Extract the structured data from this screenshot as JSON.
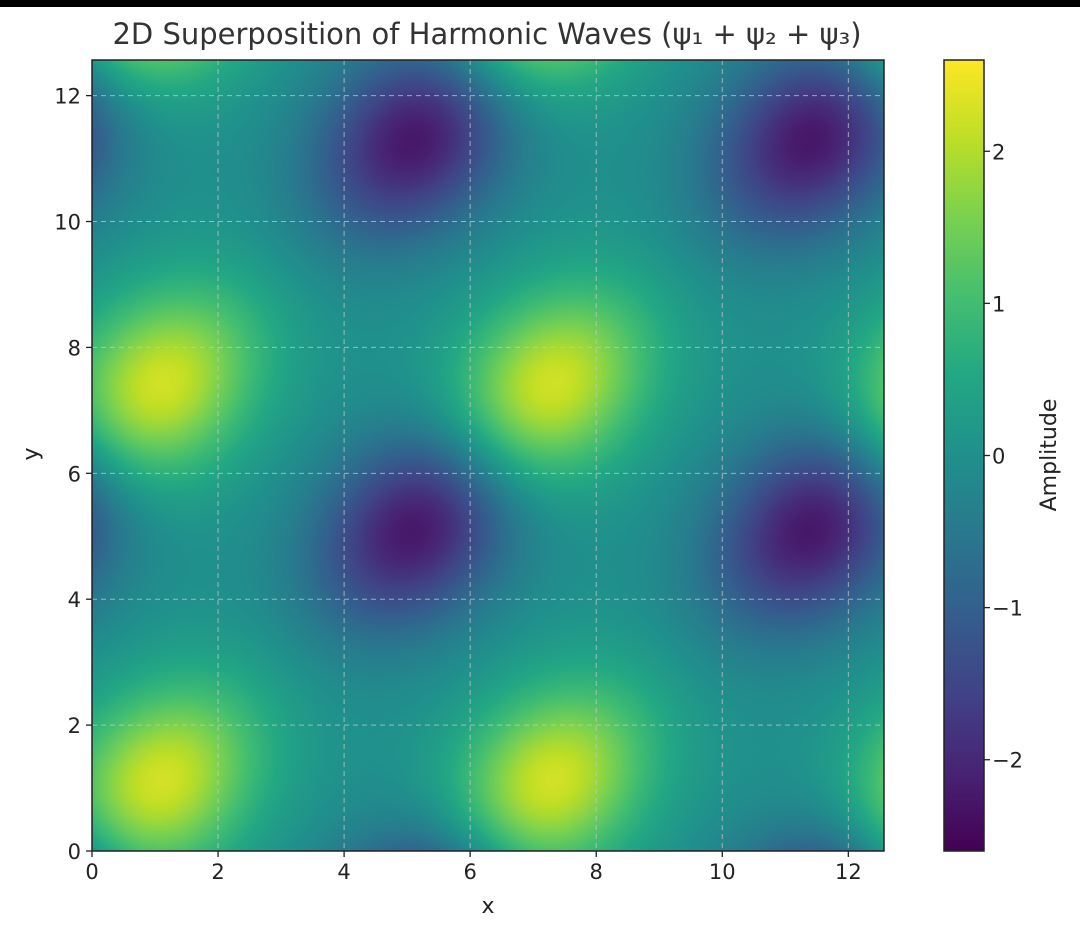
{
  "chart_data": {
    "type": "heatmap",
    "title": "2D Superposition of Harmonic Waves (ψ₁ + ψ₂ + ψ₃)",
    "xlabel": "x",
    "ylabel": "y",
    "xlim": [
      0,
      12.566
    ],
    "ylim": [
      0,
      12.566
    ],
    "x_ticks": [
      "0",
      "2",
      "4",
      "6",
      "8",
      "10",
      "12"
    ],
    "y_ticks": [
      "0",
      "2",
      "4",
      "6",
      "8",
      "10",
      "12"
    ],
    "grid": true,
    "colormap": "viridis",
    "colorbar": {
      "label": "Amplitude",
      "range": [
        -2.6,
        2.6
      ],
      "ticks": [
        "−2",
        "−1",
        "0",
        "1",
        "2"
      ]
    },
    "extrema": {
      "maxima": [
        [
          1.0,
          1.0
        ],
        [
          7.2,
          1.0
        ],
        [
          1.0,
          7.3
        ],
        [
          7.2,
          7.3
        ]
      ],
      "minima": [
        [
          5.2,
          5.2
        ],
        [
          11.5,
          5.2
        ],
        [
          5.2,
          11.4
        ],
        [
          11.5,
          11.4
        ]
      ]
    }
  }
}
